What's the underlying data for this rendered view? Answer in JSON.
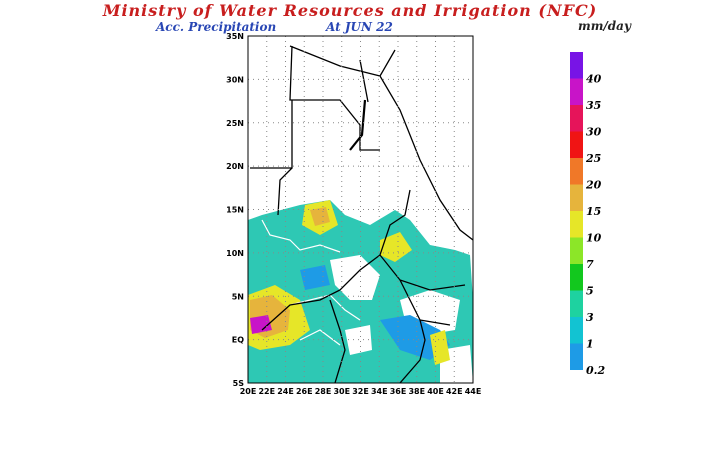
{
  "header": {
    "title": "Ministry of Water Resources and Irrigation (NFC)",
    "subtitle_left": "Acc. Precipitation",
    "subtitle_right": "At JUN 22",
    "units": "mm/day"
  },
  "map": {
    "lat_labels": [
      "35N",
      "30N",
      "25N",
      "20N",
      "15N",
      "10N",
      "5N",
      "EQ",
      "5S"
    ],
    "lon_labels": [
      "20E",
      "22E",
      "24E",
      "26E",
      "28E",
      "30E",
      "32E",
      "34E",
      "36E",
      "38E",
      "40E",
      "42E",
      "44E"
    ]
  },
  "colorbar": [
    {
      "label": "0.2",
      "color": "#1e9be6"
    },
    {
      "label": "1",
      "color": "#12c3d2"
    },
    {
      "label": "3",
      "color": "#1ed2a0"
    },
    {
      "label": "5",
      "color": "#12c81e"
    },
    {
      "label": "7",
      "color": "#8ce628"
    },
    {
      "label": "10",
      "color": "#e6e628"
    },
    {
      "label": "15",
      "color": "#e6b43c"
    },
    {
      "label": "20",
      "color": "#f07828"
    },
    {
      "label": "25",
      "color": "#f01414"
    },
    {
      "label": "30",
      "color": "#e6145a"
    },
    {
      "label": "35",
      "color": "#c814c8"
    },
    {
      "label": "40",
      "color": "#7814e6"
    }
  ]
}
